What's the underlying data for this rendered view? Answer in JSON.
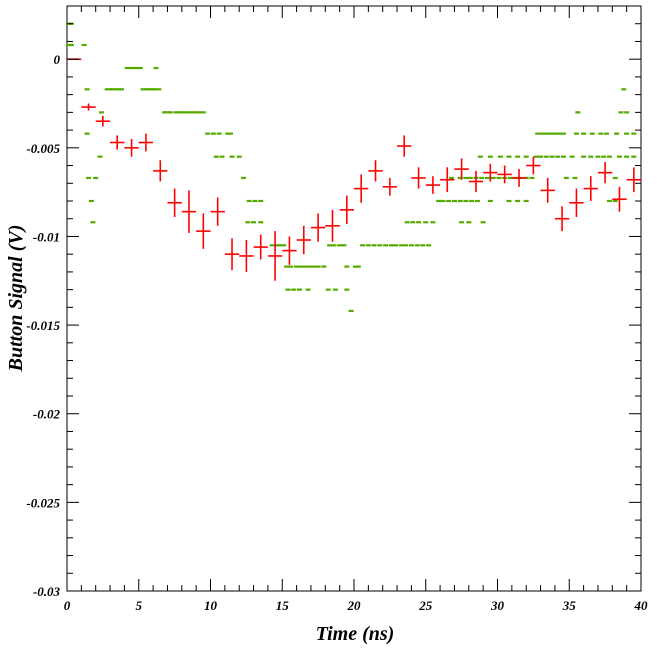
{
  "chart_data": {
    "type": "scatter",
    "title": "",
    "xlabel": "Time (ns)",
    "ylabel": "Button Signal (V)",
    "xlim": [
      0,
      40
    ],
    "ylim": [
      -0.03,
      0.003
    ],
    "x_ticks": [
      0,
      5,
      10,
      15,
      20,
      25,
      30,
      35,
      40
    ],
    "x_tick_labels": [
      "0",
      "5",
      "10",
      "15",
      "20",
      "25",
      "30",
      "35",
      "40"
    ],
    "y_ticks": [
      0,
      -0.005,
      -0.01,
      -0.015,
      -0.02,
      -0.025,
      -0.03
    ],
    "y_tick_labels": [
      "0",
      "-0.005",
      "-0.01",
      "-0.015",
      "-0.02",
      "-0.025",
      "-0.03"
    ],
    "grid": false,
    "legend": "none",
    "series": [
      {
        "color": "#ff0000",
        "marker": "cross-with-error-bars",
        "x": [
          0.5,
          1.5,
          2.5,
          3.5,
          4.5,
          5.5,
          6.5,
          7.5,
          8.5,
          9.5,
          10.5,
          11.5,
          12.5,
          13.5,
          14.5,
          15.5,
          16.5,
          17.5,
          18.5,
          19.5,
          20.5,
          21.5,
          22.5,
          23.5,
          24.5,
          25.5,
          26.5,
          27.5,
          28.5,
          29.5,
          30.5,
          31.5,
          32.5,
          33.5,
          34.5,
          35.5,
          36.5,
          37.5,
          38.5,
          39.5
        ],
        "y": [
          0.0,
          -0.0027,
          -0.0035,
          -0.0047,
          -0.005,
          -0.0047,
          -0.0063,
          -0.0081,
          -0.0086,
          -0.0097,
          -0.0086,
          -0.011,
          -0.0111,
          -0.0106,
          -0.0111,
          -0.0108,
          -0.0102,
          -0.0095,
          -0.0094,
          -0.0085,
          -0.0073,
          -0.0063,
          -0.0072,
          -0.0049,
          -0.0067,
          -0.0071,
          -0.0068,
          -0.0062,
          -0.0069,
          -0.0064,
          -0.0065,
          -0.0067,
          -0.006,
          -0.0074,
          -0.009,
          -0.0081,
          -0.0073,
          -0.0064,
          -0.0079,
          -0.0068
        ],
        "y_err": [
          0.0,
          0.0002,
          0.0003,
          0.0004,
          0.0005,
          0.0005,
          0.0006,
          0.0008,
          0.0012,
          0.001,
          0.0008,
          0.0009,
          0.0009,
          0.0007,
          0.0014,
          0.0008,
          0.0008,
          0.0008,
          0.0009,
          0.0008,
          0.0008,
          0.0006,
          0.0005,
          0.0006,
          0.0006,
          0.0005,
          0.0007,
          0.0006,
          0.0006,
          0.0005,
          0.0005,
          0.0005,
          0.0005,
          0.0007,
          0.0007,
          0.0008,
          0.0007,
          0.0006,
          0.0007,
          0.0007
        ],
        "x_halfwidth": 0.5
      },
      {
        "color": "#55aa00",
        "marker": "dash",
        "points": [
          [
            0.1,
            0.002
          ],
          [
            0.3,
            0.002
          ],
          [
            0.1,
            0.0008
          ],
          [
            0.3,
            0.0008
          ],
          [
            1.2,
            0.0008
          ],
          [
            1.4,
            -0.0017
          ],
          [
            1.4,
            -0.0042
          ],
          [
            1.5,
            -0.0067
          ],
          [
            1.7,
            -0.008
          ],
          [
            1.8,
            -0.0092
          ],
          [
            2.0,
            -0.0067
          ],
          [
            2.3,
            -0.0055
          ],
          [
            2.4,
            -0.003
          ],
          [
            2.8,
            -0.0017
          ],
          [
            3.0,
            -0.0017
          ],
          [
            3.2,
            -0.0017
          ],
          [
            3.4,
            -0.0017
          ],
          [
            3.6,
            -0.0017
          ],
          [
            3.8,
            -0.0017
          ],
          [
            4.2,
            -0.0005
          ],
          [
            4.5,
            -0.0005
          ],
          [
            4.8,
            -0.0005
          ],
          [
            5.1,
            -0.0005
          ],
          [
            5.3,
            -0.0017
          ],
          [
            5.5,
            -0.0017
          ],
          [
            5.7,
            -0.0017
          ],
          [
            5.9,
            -0.0017
          ],
          [
            6.1,
            -0.0017
          ],
          [
            6.2,
            -0.0005
          ],
          [
            6.4,
            -0.0017
          ],
          [
            6.8,
            -0.003
          ],
          [
            7.0,
            -0.003
          ],
          [
            7.2,
            -0.003
          ],
          [
            7.6,
            -0.003
          ],
          [
            7.8,
            -0.003
          ],
          [
            8.0,
            -0.003
          ],
          [
            8.2,
            -0.003
          ],
          [
            8.4,
            -0.003
          ],
          [
            8.6,
            -0.003
          ],
          [
            8.8,
            -0.003
          ],
          [
            9.0,
            -0.003
          ],
          [
            9.2,
            -0.003
          ],
          [
            9.5,
            -0.003
          ],
          [
            9.8,
            -0.0042
          ],
          [
            10.2,
            -0.0042
          ],
          [
            10.6,
            -0.0042
          ],
          [
            11.2,
            -0.0042
          ],
          [
            11.4,
            -0.0042
          ],
          [
            10.4,
            -0.0055
          ],
          [
            10.8,
            -0.0055
          ],
          [
            11.5,
            -0.0055
          ],
          [
            12.0,
            -0.0055
          ],
          [
            12.3,
            -0.0067
          ],
          [
            12.7,
            -0.008
          ],
          [
            13.1,
            -0.008
          ],
          [
            13.5,
            -0.008
          ],
          [
            12.6,
            -0.0092
          ],
          [
            13.0,
            -0.0092
          ],
          [
            13.5,
            -0.0092
          ],
          [
            14.3,
            -0.0105
          ],
          [
            14.6,
            -0.0105
          ],
          [
            14.8,
            -0.0105
          ],
          [
            15.1,
            -0.0105
          ],
          [
            15.3,
            -0.0117
          ],
          [
            15.6,
            -0.0117
          ],
          [
            16.0,
            -0.0117
          ],
          [
            16.3,
            -0.0117
          ],
          [
            16.6,
            -0.0117
          ],
          [
            16.9,
            -0.0117
          ],
          [
            17.2,
            -0.0117
          ],
          [
            17.5,
            -0.0117
          ],
          [
            17.9,
            -0.0117
          ],
          [
            15.4,
            -0.013
          ],
          [
            15.8,
            -0.013
          ],
          [
            16.2,
            -0.013
          ],
          [
            16.8,
            -0.013
          ],
          [
            18.2,
            -0.013
          ],
          [
            18.7,
            -0.013
          ],
          [
            19.5,
            -0.013
          ],
          [
            18.3,
            -0.0105
          ],
          [
            18.6,
            -0.0105
          ],
          [
            19.0,
            -0.0105
          ],
          [
            19.3,
            -0.0105
          ],
          [
            19.5,
            -0.0117
          ],
          [
            19.8,
            -0.0142
          ],
          [
            20.1,
            -0.0117
          ],
          [
            20.3,
            -0.0117
          ],
          [
            20.6,
            -0.0105
          ],
          [
            21.0,
            -0.0105
          ],
          [
            21.4,
            -0.0105
          ],
          [
            21.8,
            -0.0105
          ],
          [
            22.2,
            -0.0105
          ],
          [
            22.6,
            -0.0105
          ],
          [
            22.9,
            -0.0105
          ],
          [
            23.3,
            -0.0105
          ],
          [
            23.6,
            -0.0105
          ],
          [
            24.0,
            -0.0105
          ],
          [
            24.4,
            -0.0105
          ],
          [
            24.8,
            -0.0105
          ],
          [
            25.2,
            -0.0105
          ],
          [
            23.7,
            -0.0092
          ],
          [
            24.1,
            -0.0092
          ],
          [
            24.5,
            -0.0092
          ],
          [
            25.0,
            -0.0092
          ],
          [
            25.5,
            -0.0092
          ],
          [
            25.9,
            -0.008
          ],
          [
            26.2,
            -0.008
          ],
          [
            26.6,
            -0.008
          ],
          [
            27.0,
            -0.008
          ],
          [
            27.4,
            -0.008
          ],
          [
            27.8,
            -0.008
          ],
          [
            28.2,
            -0.008
          ],
          [
            28.6,
            -0.008
          ],
          [
            29.5,
            -0.008
          ],
          [
            27.5,
            -0.0092
          ],
          [
            28.0,
            -0.0092
          ],
          [
            29.0,
            -0.0092
          ],
          [
            26.8,
            -0.0067
          ],
          [
            27.4,
            -0.0067
          ],
          [
            27.8,
            -0.0067
          ],
          [
            28.1,
            -0.0067
          ],
          [
            28.5,
            -0.0067
          ],
          [
            28.9,
            -0.0067
          ],
          [
            29.3,
            -0.0067
          ],
          [
            29.7,
            -0.0067
          ],
          [
            30.1,
            -0.0067
          ],
          [
            30.5,
            -0.0067
          ],
          [
            30.9,
            -0.0067
          ],
          [
            31.3,
            -0.0067
          ],
          [
            31.6,
            -0.0067
          ],
          [
            32.0,
            -0.0067
          ],
          [
            32.4,
            -0.0067
          ],
          [
            28.8,
            -0.0055
          ],
          [
            29.5,
            -0.0055
          ],
          [
            30.2,
            -0.0055
          ],
          [
            30.8,
            -0.0055
          ],
          [
            31.4,
            -0.0055
          ],
          [
            32.0,
            -0.0055
          ],
          [
            32.7,
            -0.0055
          ],
          [
            33.0,
            -0.0055
          ],
          [
            33.4,
            -0.0055
          ],
          [
            33.8,
            -0.0055
          ],
          [
            34.2,
            -0.0055
          ],
          [
            34.6,
            -0.0055
          ],
          [
            35.2,
            -0.0055
          ],
          [
            36.0,
            -0.0055
          ],
          [
            36.5,
            -0.0055
          ],
          [
            37.0,
            -0.0055
          ],
          [
            37.4,
            -0.0055
          ],
          [
            37.8,
            -0.0055
          ],
          [
            38.5,
            -0.0055
          ],
          [
            39.0,
            -0.0055
          ],
          [
            39.5,
            -0.0055
          ],
          [
            32.8,
            -0.0042
          ],
          [
            33.1,
            -0.0042
          ],
          [
            33.4,
            -0.0042
          ],
          [
            33.7,
            -0.0042
          ],
          [
            34.0,
            -0.0042
          ],
          [
            34.3,
            -0.0042
          ],
          [
            34.6,
            -0.0042
          ],
          [
            35.5,
            -0.0042
          ],
          [
            36.0,
            -0.0042
          ],
          [
            36.6,
            -0.0042
          ],
          [
            37.2,
            -0.0042
          ],
          [
            37.6,
            -0.0042
          ],
          [
            38.3,
            -0.0042
          ],
          [
            39.0,
            -0.0042
          ],
          [
            39.5,
            -0.0042
          ],
          [
            30.8,
            -0.008
          ],
          [
            31.4,
            -0.008
          ],
          [
            32.0,
            -0.008
          ],
          [
            34.8,
            -0.0067
          ],
          [
            35.4,
            -0.0067
          ],
          [
            38.2,
            -0.0067
          ],
          [
            38.6,
            -0.003
          ],
          [
            39.0,
            -0.003
          ],
          [
            38.8,
            -0.0017
          ],
          [
            35.6,
            -0.003
          ],
          [
            37.8,
            -0.008
          ],
          [
            38.2,
            -0.008
          ]
        ]
      }
    ]
  }
}
